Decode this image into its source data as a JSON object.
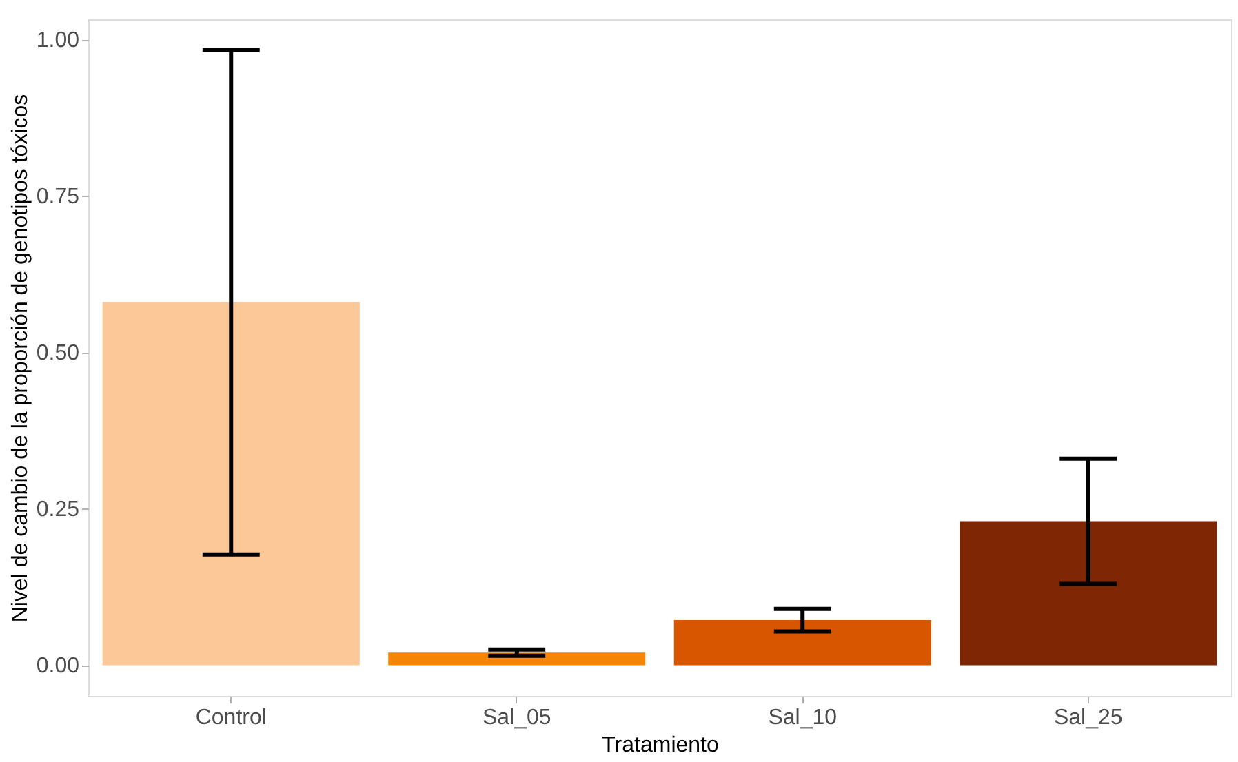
{
  "chart_data": {
    "type": "bar",
    "xlabel": "Tratamiento",
    "ylabel": "Nivel de cambio de la proporción de genotipos tóxicos",
    "categories": [
      "Control",
      "Sal_05",
      "Sal_10",
      "Sal_25"
    ],
    "values": [
      0.58,
      0.02,
      0.072,
      0.23
    ],
    "errors": [
      0.403,
      0.005,
      0.018,
      0.1
    ],
    "colors": [
      "#fdc897",
      "#f58505",
      "#d95600",
      "#7f2704"
    ],
    "ylim": [
      -0.049,
      1.032
    ],
    "yticks": [
      {
        "value": 0,
        "label": "0.00"
      },
      {
        "value": 0.25,
        "label": "0.25"
      },
      {
        "value": 0.5,
        "label": "0.50"
      },
      {
        "value": 0.75,
        "label": "0.75"
      },
      {
        "value": 1,
        "label": "1.00"
      }
    ],
    "grid": false
  }
}
